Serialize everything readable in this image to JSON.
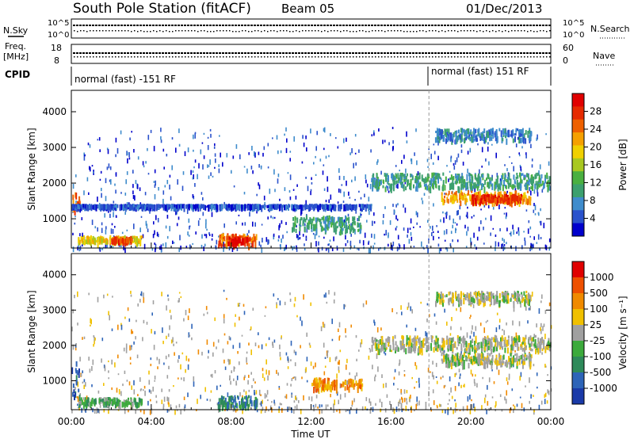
{
  "header": {
    "station": "South Pole Station (fitACF)",
    "beam": "Beam 05",
    "date": "01/Dec/2013"
  },
  "info_panels": {
    "nsky_label": "N.Sky",
    "nsearch_label": "N.Search",
    "freq_label": "Freq.",
    "freq_unit": "[MHz]",
    "nave_label": "Nave",
    "cpid_label": "CPID",
    "left_scale": {
      "top": "10^5",
      "bottom": "10^0"
    },
    "right_scale": {
      "top": "10^5",
      "bottom": "10^0"
    },
    "freq_ticks": [
      "18",
      "8"
    ],
    "nave_ticks": [
      "60",
      "0"
    ],
    "cpid_segments": [
      {
        "label": "normal (fast) -151 RF",
        "start_hour": 0,
        "end_hour": 17.9
      },
      {
        "label": "normal (fast) 151 RF",
        "start_hour": 17.9,
        "end_hour": 24
      }
    ]
  },
  "chart_data": [
    {
      "type": "heatmap",
      "name": "power",
      "xlabel": "Time UT",
      "ylabel": "Slant Range [km]",
      "xlim": [
        0,
        24
      ],
      "ylim": [
        180,
        4600
      ],
      "x_ticks": [
        "00:00",
        "04:00",
        "08:00",
        "12:00",
        "16:00",
        "20:00",
        "00:00"
      ],
      "y_ticks": [
        1000,
        2000,
        3000,
        4000
      ],
      "colorbar": {
        "label": "Power [dB]",
        "ticks": [
          "4",
          "8",
          "12",
          "16",
          "20",
          "24",
          "28"
        ],
        "colors": [
          "#0000cc",
          "#2a52cc",
          "#3f8ccc",
          "#3ca06e",
          "#4ab040",
          "#a8c820",
          "#f0d000",
          "#f5a000",
          "#ee6000",
          "#e62a00",
          "#e00000"
        ]
      },
      "bands": [
        {
          "t0": 0.0,
          "t1": 0.4,
          "r0": 1200,
          "r1": 1750,
          "level": 8
        },
        {
          "t0": 0.3,
          "t1": 3.5,
          "r0": 380,
          "r1": 540,
          "level": 6
        },
        {
          "t0": 2.0,
          "t1": 3.0,
          "r0": 390,
          "r1": 520,
          "level": 9
        },
        {
          "t0": 7.3,
          "t1": 9.3,
          "r0": 300,
          "r1": 600,
          "level": 8
        },
        {
          "t0": 7.8,
          "t1": 8.8,
          "r0": 360,
          "r1": 520,
          "level": 10
        },
        {
          "t0": 15.0,
          "t1": 24.0,
          "r0": 1900,
          "r1": 2300,
          "level": 3
        },
        {
          "t0": 18.5,
          "t1": 23.0,
          "r0": 1500,
          "r1": 1800,
          "level": 7
        },
        {
          "t0": 20.0,
          "t1": 22.5,
          "r0": 1520,
          "r1": 1700,
          "level": 9
        },
        {
          "t0": 18.2,
          "t1": 23.0,
          "r0": 3250,
          "r1": 3550,
          "level": 2
        },
        {
          "t0": 0.0,
          "t1": 15.0,
          "r0": 1380,
          "r1": 1420,
          "level": 1
        },
        {
          "t0": 11.0,
          "t1": 14.5,
          "r0": 700,
          "r1": 1100,
          "level": 3
        }
      ]
    },
    {
      "type": "heatmap",
      "name": "velocity",
      "xlabel": "Time UT",
      "ylabel": "Slant Range [km]",
      "xlim": [
        0,
        24
      ],
      "ylim": [
        180,
        4600
      ],
      "x_ticks": [
        "00:00",
        "04:00",
        "08:00",
        "12:00",
        "16:00",
        "20:00",
        "00:00"
      ],
      "y_ticks": [
        1000,
        2000,
        3000,
        4000
      ],
      "colorbar": {
        "label": "Velocity [m s⁻¹]",
        "ticks": [
          "1000",
          "500",
          "100",
          "25",
          "-25",
          "-100",
          "-500",
          "-1000"
        ],
        "colors": [
          "#1a3aa8",
          "#2d64b8",
          "#2e8a5a",
          "#3caa3c",
          "#a0a0a0",
          "#f0c000",
          "#f08a00",
          "#ee5000",
          "#e00000"
        ]
      },
      "bands": [
        {
          "t0": 0.3,
          "t1": 3.5,
          "r0": 380,
          "r1": 540,
          "level": 3
        },
        {
          "t0": 7.3,
          "t1": 9.3,
          "r0": 300,
          "r1": 600,
          "level": 2
        },
        {
          "t0": 15.0,
          "t1": 24.0,
          "r0": 1900,
          "r1": 2300,
          "level": 4
        },
        {
          "t0": 18.5,
          "t1": 23.0,
          "r0": 1500,
          "r1": 1800,
          "level": 4
        },
        {
          "t0": 18.2,
          "t1": 23.0,
          "r0": 3250,
          "r1": 3550,
          "level": 4
        },
        {
          "t0": 0.0,
          "t1": 0.4,
          "r0": 600,
          "r1": 1750,
          "level": 1
        },
        {
          "t0": 12.0,
          "t1": 14.5,
          "r0": 800,
          "r1": 1100,
          "level": 6
        }
      ]
    }
  ]
}
